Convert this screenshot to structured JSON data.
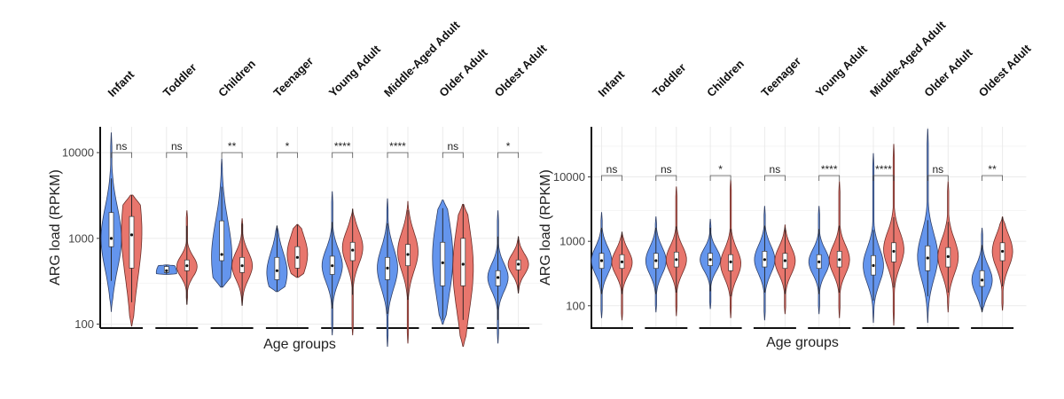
{
  "chart_data": [
    {
      "type": "violin",
      "ylabel": "ARG load (RPKM)",
      "xlabel": "Age groups",
      "yscale": "log10",
      "ylim": [
        90,
        20000
      ],
      "yticks": [
        100,
        1000,
        10000
      ],
      "ytick_labels": [
        "100",
        "1000",
        "10000"
      ],
      "colors": [
        "#6495ed",
        "#e8766d"
      ],
      "panels": [
        {
          "label": "Infant",
          "sig": "ns",
          "groups": [
            {
              "min": 140,
              "q1": 800,
              "median": 1000,
              "q3": 2000,
              "max": 17000,
              "mode": 1000
            },
            {
              "min": 95,
              "q1": 450,
              "median": 1100,
              "q3": 1800,
              "max": 3200,
              "mode": 1200
            }
          ]
        },
        {
          "label": "Toddler",
          "sig": "ns",
          "groups": [
            {
              "min": 380,
              "q1": 400,
              "median": 420,
              "q3": 470,
              "max": 490,
              "mode": 400
            },
            {
              "min": 170,
              "q1": 420,
              "median": 480,
              "q3": 560,
              "max": 2100,
              "mode": 470
            }
          ]
        },
        {
          "label": "Children",
          "sig": "**",
          "groups": [
            {
              "min": 270,
              "q1": 550,
              "median": 650,
              "q3": 1600,
              "max": 8500,
              "mode": 600
            },
            {
              "min": 165,
              "q1": 400,
              "median": 480,
              "q3": 600,
              "max": 1700,
              "mode": 480
            }
          ]
        },
        {
          "label": "Teenager",
          "sig": "*",
          "groups": [
            {
              "min": 240,
              "q1": 330,
              "median": 420,
              "q3": 600,
              "max": 1400,
              "mode": 400
            },
            {
              "min": 350,
              "q1": 450,
              "median": 600,
              "q3": 800,
              "max": 1450,
              "mode": 650
            }
          ]
        },
        {
          "label": "Young Adult",
          "sig": "****",
          "groups": [
            {
              "min": 75,
              "q1": 380,
              "median": 480,
              "q3": 620,
              "max": 3500,
              "mode": 480
            },
            {
              "min": 75,
              "q1": 550,
              "median": 730,
              "q3": 900,
              "max": 2200,
              "mode": 780
            }
          ]
        },
        {
          "label": "Middle-Aged Adult",
          "sig": "****",
          "groups": [
            {
              "min": 55,
              "q1": 330,
              "median": 450,
              "q3": 600,
              "max": 2900,
              "mode": 450
            },
            {
              "min": 60,
              "q1": 480,
              "median": 650,
              "q3": 850,
              "max": 2700,
              "mode": 700
            }
          ]
        },
        {
          "label": "Older Adult",
          "sig": "ns",
          "groups": [
            {
              "min": 100,
              "q1": 280,
              "median": 520,
              "q3": 900,
              "max": 2800,
              "mode": 600
            },
            {
              "min": 55,
              "q1": 280,
              "median": 500,
              "q3": 1000,
              "max": 2500,
              "mode": 450
            }
          ]
        },
        {
          "label": "Oldest Adult",
          "sig": "*",
          "groups": [
            {
              "min": 60,
              "q1": 280,
              "median": 350,
              "q3": 420,
              "max": 2100,
              "mode": 350
            },
            {
              "min": 230,
              "q1": 430,
              "median": 500,
              "q3": 560,
              "max": 1050,
              "mode": 500
            }
          ]
        }
      ]
    },
    {
      "type": "violin",
      "ylabel": "ARG load (RPKM)",
      "xlabel": "Age groups",
      "yscale": "log10",
      "ylim": [
        45,
        60000
      ],
      "yticks": [
        100,
        1000,
        10000
      ],
      "ytick_labels": [
        "100",
        "1000",
        "10000"
      ],
      "colors": [
        "#6495ed",
        "#e8766d"
      ],
      "panels": [
        {
          "label": "Infant",
          "sig": "ns",
          "groups": [
            {
              "min": 65,
              "q1": 380,
              "median": 500,
              "q3": 650,
              "max": 2800,
              "mode": 500
            },
            {
              "min": 60,
              "q1": 380,
              "median": 480,
              "q3": 620,
              "max": 1400,
              "mode": 470
            }
          ]
        },
        {
          "label": "Toddler",
          "sig": "ns",
          "groups": [
            {
              "min": 80,
              "q1": 380,
              "median": 500,
              "q3": 650,
              "max": 2400,
              "mode": 500
            },
            {
              "min": 70,
              "q1": 400,
              "median": 520,
              "q3": 680,
              "max": 7000,
              "mode": 520
            }
          ]
        },
        {
          "label": "Children",
          "sig": "*",
          "groups": [
            {
              "min": 90,
              "q1": 420,
              "median": 520,
              "q3": 650,
              "max": 2200,
              "mode": 520
            },
            {
              "min": 65,
              "q1": 350,
              "median": 480,
              "q3": 620,
              "max": 9000,
              "mode": 450
            }
          ]
        },
        {
          "label": "Teenager",
          "sig": "ns",
          "groups": [
            {
              "min": 60,
              "q1": 400,
              "median": 520,
              "q3": 700,
              "max": 3500,
              "mode": 520
            },
            {
              "min": 75,
              "q1": 380,
              "median": 500,
              "q3": 650,
              "max": 1800,
              "mode": 500
            }
          ]
        },
        {
          "label": "Young Adult",
          "sig": "****",
          "groups": [
            {
              "min": 75,
              "q1": 380,
              "median": 480,
              "q3": 620,
              "max": 3500,
              "mode": 480
            },
            {
              "min": 65,
              "q1": 400,
              "median": 520,
              "q3": 700,
              "max": 8500,
              "mode": 520
            }
          ]
        },
        {
          "label": "Middle-Aged Adult",
          "sig": "****",
          "groups": [
            {
              "min": 55,
              "q1": 300,
              "median": 420,
              "q3": 600,
              "max": 23000,
              "mode": 420
            },
            {
              "min": 50,
              "q1": 480,
              "median": 700,
              "q3": 950,
              "max": 32000,
              "mode": 750
            }
          ]
        },
        {
          "label": "Older Adult",
          "sig": "ns",
          "groups": [
            {
              "min": 55,
              "q1": 350,
              "median": 550,
              "q3": 850,
              "max": 55000,
              "mode": 580
            },
            {
              "min": 80,
              "q1": 400,
              "median": 580,
              "q3": 800,
              "max": 8500,
              "mode": 580
            }
          ]
        },
        {
          "label": "Oldest Adult",
          "sig": "**",
          "groups": [
            {
              "min": 80,
              "q1": 200,
              "median": 250,
              "q3": 350,
              "max": 1600,
              "mode": 250
            },
            {
              "min": 85,
              "q1": 500,
              "median": 700,
              "q3": 950,
              "max": 2400,
              "mode": 700
            }
          ]
        }
      ]
    }
  ]
}
